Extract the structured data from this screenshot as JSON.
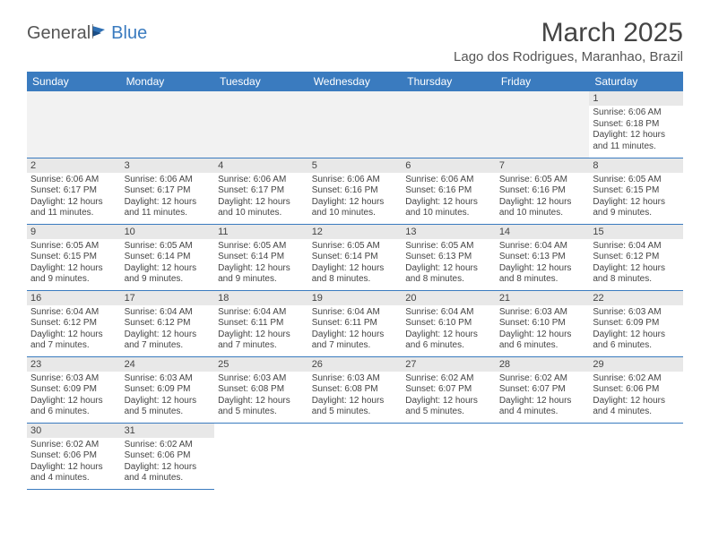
{
  "logo": {
    "general": "General",
    "blue": "Blue"
  },
  "title": "March 2025",
  "location": "Lago dos Rodrigues, Maranhao, Brazil",
  "weekday_header_color": "#3a7bbf",
  "daynum_bg": "#e8e8e8",
  "row_border_color": "#3a7bbf",
  "text_color": "#444444",
  "body_bg": "#ffffff",
  "font_family": "Arial, Helvetica, sans-serif",
  "title_fontsize": 30,
  "location_fontsize": 15,
  "header_fontsize": 12,
  "daynum_fontsize": 11,
  "cell_fontsize": 10,
  "weekdays": [
    "Sunday",
    "Monday",
    "Tuesday",
    "Wednesday",
    "Thursday",
    "Friday",
    "Saturday"
  ],
  "leading_blanks": 6,
  "trailing_blanks": 5,
  "days": [
    {
      "n": "1",
      "sr": "Sunrise: 6:06 AM",
      "ss": "Sunset: 6:18 PM",
      "dl1": "Daylight: 12 hours",
      "dl2": "and 11 minutes."
    },
    {
      "n": "2",
      "sr": "Sunrise: 6:06 AM",
      "ss": "Sunset: 6:17 PM",
      "dl1": "Daylight: 12 hours",
      "dl2": "and 11 minutes."
    },
    {
      "n": "3",
      "sr": "Sunrise: 6:06 AM",
      "ss": "Sunset: 6:17 PM",
      "dl1": "Daylight: 12 hours",
      "dl2": "and 11 minutes."
    },
    {
      "n": "4",
      "sr": "Sunrise: 6:06 AM",
      "ss": "Sunset: 6:17 PM",
      "dl1": "Daylight: 12 hours",
      "dl2": "and 10 minutes."
    },
    {
      "n": "5",
      "sr": "Sunrise: 6:06 AM",
      "ss": "Sunset: 6:16 PM",
      "dl1": "Daylight: 12 hours",
      "dl2": "and 10 minutes."
    },
    {
      "n": "6",
      "sr": "Sunrise: 6:06 AM",
      "ss": "Sunset: 6:16 PM",
      "dl1": "Daylight: 12 hours",
      "dl2": "and 10 minutes."
    },
    {
      "n": "7",
      "sr": "Sunrise: 6:05 AM",
      "ss": "Sunset: 6:16 PM",
      "dl1": "Daylight: 12 hours",
      "dl2": "and 10 minutes."
    },
    {
      "n": "8",
      "sr": "Sunrise: 6:05 AM",
      "ss": "Sunset: 6:15 PM",
      "dl1": "Daylight: 12 hours",
      "dl2": "and 9 minutes."
    },
    {
      "n": "9",
      "sr": "Sunrise: 6:05 AM",
      "ss": "Sunset: 6:15 PM",
      "dl1": "Daylight: 12 hours",
      "dl2": "and 9 minutes."
    },
    {
      "n": "10",
      "sr": "Sunrise: 6:05 AM",
      "ss": "Sunset: 6:14 PM",
      "dl1": "Daylight: 12 hours",
      "dl2": "and 9 minutes."
    },
    {
      "n": "11",
      "sr": "Sunrise: 6:05 AM",
      "ss": "Sunset: 6:14 PM",
      "dl1": "Daylight: 12 hours",
      "dl2": "and 9 minutes."
    },
    {
      "n": "12",
      "sr": "Sunrise: 6:05 AM",
      "ss": "Sunset: 6:14 PM",
      "dl1": "Daylight: 12 hours",
      "dl2": "and 8 minutes."
    },
    {
      "n": "13",
      "sr": "Sunrise: 6:05 AM",
      "ss": "Sunset: 6:13 PM",
      "dl1": "Daylight: 12 hours",
      "dl2": "and 8 minutes."
    },
    {
      "n": "14",
      "sr": "Sunrise: 6:04 AM",
      "ss": "Sunset: 6:13 PM",
      "dl1": "Daylight: 12 hours",
      "dl2": "and 8 minutes."
    },
    {
      "n": "15",
      "sr": "Sunrise: 6:04 AM",
      "ss": "Sunset: 6:12 PM",
      "dl1": "Daylight: 12 hours",
      "dl2": "and 8 minutes."
    },
    {
      "n": "16",
      "sr": "Sunrise: 6:04 AM",
      "ss": "Sunset: 6:12 PM",
      "dl1": "Daylight: 12 hours",
      "dl2": "and 7 minutes."
    },
    {
      "n": "17",
      "sr": "Sunrise: 6:04 AM",
      "ss": "Sunset: 6:12 PM",
      "dl1": "Daylight: 12 hours",
      "dl2": "and 7 minutes."
    },
    {
      "n": "18",
      "sr": "Sunrise: 6:04 AM",
      "ss": "Sunset: 6:11 PM",
      "dl1": "Daylight: 12 hours",
      "dl2": "and 7 minutes."
    },
    {
      "n": "19",
      "sr": "Sunrise: 6:04 AM",
      "ss": "Sunset: 6:11 PM",
      "dl1": "Daylight: 12 hours",
      "dl2": "and 7 minutes."
    },
    {
      "n": "20",
      "sr": "Sunrise: 6:04 AM",
      "ss": "Sunset: 6:10 PM",
      "dl1": "Daylight: 12 hours",
      "dl2": "and 6 minutes."
    },
    {
      "n": "21",
      "sr": "Sunrise: 6:03 AM",
      "ss": "Sunset: 6:10 PM",
      "dl1": "Daylight: 12 hours",
      "dl2": "and 6 minutes."
    },
    {
      "n": "22",
      "sr": "Sunrise: 6:03 AM",
      "ss": "Sunset: 6:09 PM",
      "dl1": "Daylight: 12 hours",
      "dl2": "and 6 minutes."
    },
    {
      "n": "23",
      "sr": "Sunrise: 6:03 AM",
      "ss": "Sunset: 6:09 PM",
      "dl1": "Daylight: 12 hours",
      "dl2": "and 6 minutes."
    },
    {
      "n": "24",
      "sr": "Sunrise: 6:03 AM",
      "ss": "Sunset: 6:09 PM",
      "dl1": "Daylight: 12 hours",
      "dl2": "and 5 minutes."
    },
    {
      "n": "25",
      "sr": "Sunrise: 6:03 AM",
      "ss": "Sunset: 6:08 PM",
      "dl1": "Daylight: 12 hours",
      "dl2": "and 5 minutes."
    },
    {
      "n": "26",
      "sr": "Sunrise: 6:03 AM",
      "ss": "Sunset: 6:08 PM",
      "dl1": "Daylight: 12 hours",
      "dl2": "and 5 minutes."
    },
    {
      "n": "27",
      "sr": "Sunrise: 6:02 AM",
      "ss": "Sunset: 6:07 PM",
      "dl1": "Daylight: 12 hours",
      "dl2": "and 5 minutes."
    },
    {
      "n": "28",
      "sr": "Sunrise: 6:02 AM",
      "ss": "Sunset: 6:07 PM",
      "dl1": "Daylight: 12 hours",
      "dl2": "and 4 minutes."
    },
    {
      "n": "29",
      "sr": "Sunrise: 6:02 AM",
      "ss": "Sunset: 6:06 PM",
      "dl1": "Daylight: 12 hours",
      "dl2": "and 4 minutes."
    },
    {
      "n": "30",
      "sr": "Sunrise: 6:02 AM",
      "ss": "Sunset: 6:06 PM",
      "dl1": "Daylight: 12 hours",
      "dl2": "and 4 minutes."
    },
    {
      "n": "31",
      "sr": "Sunrise: 6:02 AM",
      "ss": "Sunset: 6:06 PM",
      "dl1": "Daylight: 12 hours",
      "dl2": "and 4 minutes."
    }
  ]
}
